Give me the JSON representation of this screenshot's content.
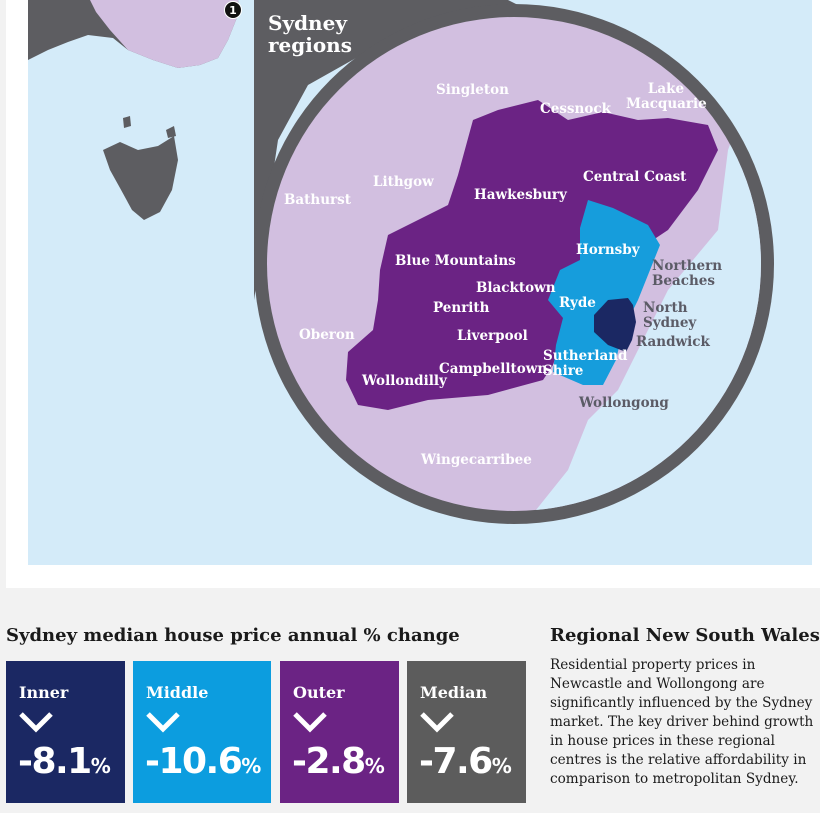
{
  "map": {
    "title": "Sydney regions",
    "marker": "1",
    "colors": {
      "water": "#d4ebf9",
      "land_dark": "#5d5d61",
      "land_light": "#d2bfe0",
      "outer": "#6b2384",
      "middle": "#169ddc",
      "inner": "#1b2863"
    },
    "labels": {
      "singleton": "Singleton",
      "cessnock": "Cessnock",
      "lake_macquarie": "Lake Macquarie",
      "lithgow": "Lithgow",
      "bathurst": "Bathurst",
      "hawkesbury": "Hawkesbury",
      "central_coast": "Central Coast",
      "blue_mountains": "Blue Mountains",
      "hornsby": "Hornsby",
      "northern_beaches": "Northern Beaches",
      "blacktown": "Blacktown",
      "ryde": "Ryde",
      "north_sydney": "North Sydney",
      "penrith": "Penrith",
      "oberon": "Oberon",
      "liverpool": "Liverpool",
      "randwick": "Randwick",
      "sutherland_shire": "Sutherland Shire",
      "campbelltown": "Campbelltown",
      "wollondilly": "Wollondilly",
      "wollongong": "Wollongong",
      "wingecarribee": "Wingecarribee"
    }
  },
  "chart_title": "Sydney median house price annual % change",
  "cards": [
    {
      "name": "Inner",
      "value": "-8.1",
      "unit": "%",
      "color": "#1b2863",
      "icon": "chevron-down-icon"
    },
    {
      "name": "Middle",
      "value": "-10.6",
      "unit": "%",
      "color": "#0c9ddf",
      "icon": "chevron-down-icon"
    },
    {
      "name": "Outer",
      "value": "-2.8",
      "unit": "%",
      "color": "#6b2384",
      "icon": "chevron-down-icon"
    },
    {
      "name": "Median",
      "value": "-7.6",
      "unit": "%",
      "color": "#5c5c5c",
      "icon": "chevron-down-icon"
    }
  ],
  "side": {
    "title": "Regional New South Wales",
    "body": "Residential property prices in Newcastle and Wollongong are significantly influenced by the Sydney market. The key driver behind growth in house prices in these regional centres is the relative affordability in comparison to metropolitan Sydney."
  }
}
